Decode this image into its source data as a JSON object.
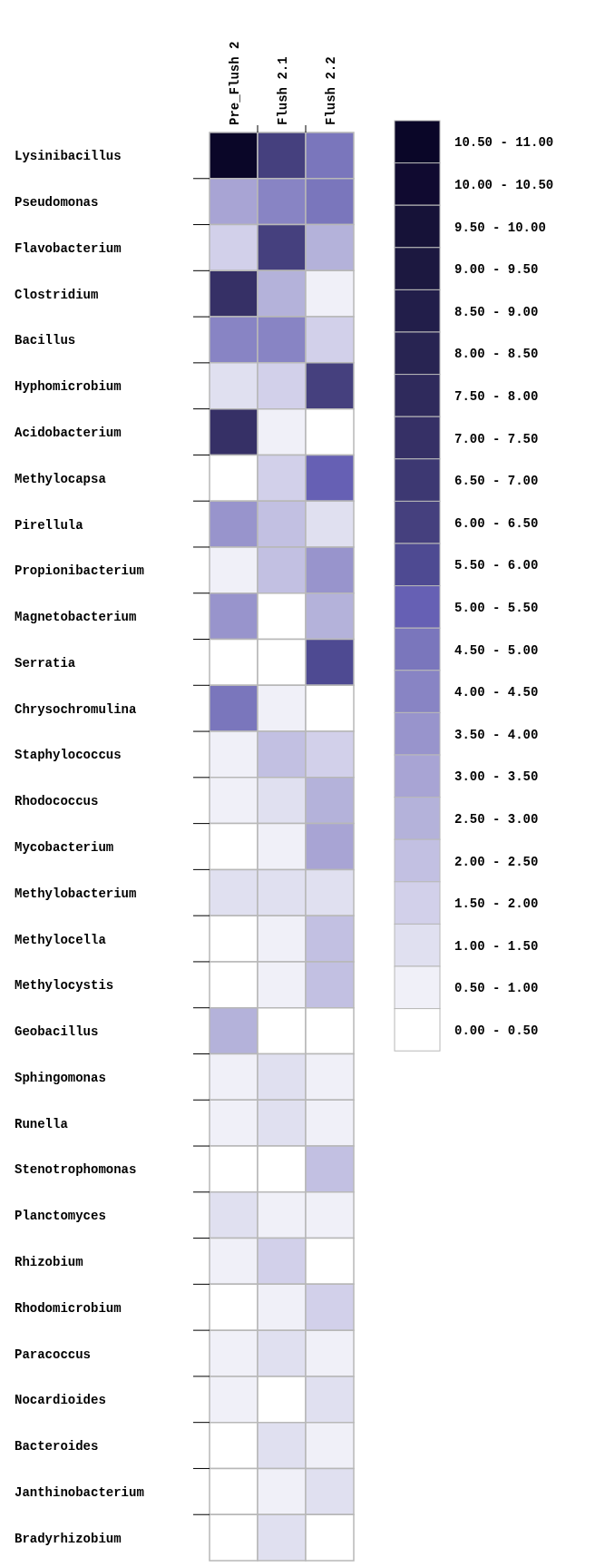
{
  "chart_data": {
    "type": "heatmap",
    "categories": [
      "Pre_Flush 2",
      "Flush 2.1",
      "Flush 2.2"
    ],
    "y_categories": [
      "Lysinibacillus",
      "Pseudomonas",
      "Flavobacterium",
      "Clostridium",
      "Bacillus",
      "Hyphomicrobium",
      "Acidobacterium",
      "Methylocapsa",
      "Pirellula",
      "Propionibacterium",
      "Magnetobacterium",
      "Serratia",
      "Chrysochromulina",
      "Staphylococcus",
      "Rhodococcus",
      "Mycobacterium",
      "Methylobacterium",
      "Methylocella",
      "Methylocystis",
      "Geobacillus",
      "Sphingomonas",
      "Runella",
      "Stenotrophomonas",
      "Planctomyces",
      "Rhizobium",
      "Rhodomicrobium",
      "Paracoccus",
      "Nocardioides",
      "Bacteroides",
      "Janthinobacterium",
      "Bradyrhizobium"
    ],
    "cells": [
      [
        10.75,
        6.25,
        4.75
      ],
      [
        3.25,
        4.25,
        4.75
      ],
      [
        1.75,
        6.25,
        2.75
      ],
      [
        7.25,
        2.75,
        0.75
      ],
      [
        4.25,
        4.25,
        1.75
      ],
      [
        1.25,
        1.75,
        6.25
      ],
      [
        7.25,
        0.75,
        0.25
      ],
      [
        0.25,
        1.75,
        5.25
      ],
      [
        3.75,
        2.25,
        1.25
      ],
      [
        0.75,
        2.25,
        3.75
      ],
      [
        3.75,
        0.25,
        2.75
      ],
      [
        0.25,
        0.25,
        5.75
      ],
      [
        4.75,
        0.75,
        0.25
      ],
      [
        0.75,
        2.25,
        1.75
      ],
      [
        0.75,
        1.25,
        2.75
      ],
      [
        0.25,
        0.75,
        3.25
      ],
      [
        1.25,
        1.25,
        1.25
      ],
      [
        0.25,
        0.75,
        2.25
      ],
      [
        0.25,
        0.75,
        2.25
      ],
      [
        2.75,
        0.25,
        0.25
      ],
      [
        0.75,
        1.25,
        0.75
      ],
      [
        0.75,
        1.25,
        0.75
      ],
      [
        0.25,
        0.25,
        2.25
      ],
      [
        1.25,
        0.75,
        0.75
      ],
      [
        0.75,
        1.75,
        0.25
      ],
      [
        0.25,
        0.75,
        1.75
      ],
      [
        0.75,
        1.25,
        0.75
      ],
      [
        0.75,
        0.25,
        1.25
      ],
      [
        0.25,
        1.25,
        0.75
      ],
      [
        0.25,
        0.75,
        1.25
      ],
      [
        0.25,
        1.25,
        0.25
      ]
    ],
    "clim": [
      0,
      11
    ],
    "colors": [
      "#ffffff",
      "#f0f0f8",
      "#e0e0f0",
      "#d2d0ea",
      "#c2c0e2",
      "#b4b2da",
      "#a8a4d4",
      "#9894cc",
      "#8884c4",
      "#7a76bc",
      "#6660b4",
      "#4e4a92",
      "#45407e",
      "#3d3872",
      "#363066",
      "#2f2a5c",
      "#282452",
      "#221e4a",
      "#1c1840",
      "#161238",
      "#100a30",
      "#0a0628"
    ],
    "cticks": [
      {
        "value": 0.25,
        "label": "0.00 - 0.50"
      },
      {
        "value": 0.75,
        "label": "0.50 - 1.00"
      },
      {
        "value": 1.25,
        "label": "1.00 - 1.50"
      },
      {
        "value": 1.75,
        "label": "1.50 - 2.00"
      },
      {
        "value": 2.25,
        "label": "2.00 - 2.50"
      },
      {
        "value": 2.75,
        "label": "2.50 - 3.00"
      },
      {
        "value": 3.25,
        "label": "3.00 - 3.50"
      },
      {
        "value": 3.75,
        "label": "3.50 - 4.00"
      },
      {
        "value": 4.25,
        "label": "4.00 - 4.50"
      },
      {
        "value": 4.75,
        "label": "4.50 - 5.00"
      },
      {
        "value": 5.25,
        "label": "5.00 - 5.50"
      },
      {
        "value": 5.75,
        "label": "5.50 - 6.00"
      },
      {
        "value": 6.25,
        "label": "6.00 - 6.50"
      },
      {
        "value": 6.75,
        "label": "6.50 - 7.00"
      },
      {
        "value": 7.25,
        "label": "7.00 - 7.50"
      },
      {
        "value": 7.75,
        "label": "7.50 - 8.00"
      },
      {
        "value": 8.25,
        "label": "8.00 - 8.50"
      },
      {
        "value": 8.75,
        "label": "8.50 - 9.00"
      },
      {
        "value": 9.25,
        "label": "9.00 - 9.50"
      },
      {
        "value": 9.75,
        "label": "9.50 - 10.00"
      },
      {
        "value": 10.25,
        "label": "10.00 - 10.50"
      },
      {
        "value": 10.75,
        "label": "10.50 - 11.00"
      }
    ]
  }
}
